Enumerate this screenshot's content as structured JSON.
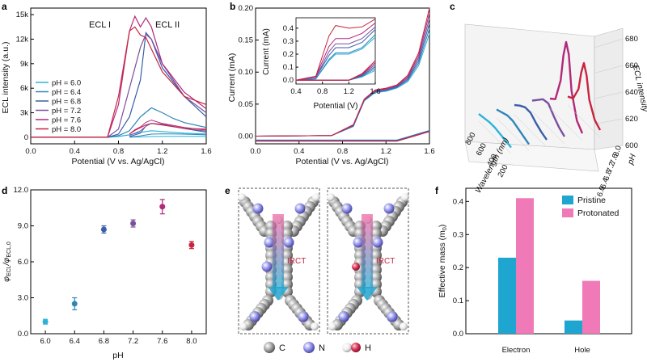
{
  "panels": {
    "a": {
      "letter": "a",
      "xlabel": "Potential (V vs. Ag/AgCl)",
      "ylabel": "ECL intensity (a.u.)",
      "xticks": [
        "0.0",
        "0.4",
        "0.8",
        "1.2",
        "1.6"
      ],
      "yticks": [
        "0",
        "3k",
        "6k",
        "9k",
        "12k",
        "15k"
      ],
      "annotations": [
        "ECL I",
        "ECL II"
      ],
      "legend": [
        "pH = 6.0",
        "pH = 6.4",
        "pH = 6.8",
        "pH = 7.2",
        "pH = 7.6",
        "pH = 8.0"
      ]
    },
    "b": {
      "letter": "b",
      "xlabel": "Potential (V vs. Ag/AgCl)",
      "ylabel": "Current (mA)",
      "xticks": [
        "0.0",
        "0.4",
        "0.8",
        "1.2",
        "1.6"
      ],
      "yticks": [
        "0.00",
        "0.05",
        "0.10",
        "0.15",
        "0.20"
      ],
      "inset": {
        "xlabel": "Potential (V)",
        "ylabel": "Current (mA)",
        "xticks": [
          "0.4",
          "0.8",
          "1.2",
          "1.6"
        ],
        "yticks": [
          "0.0",
          "0.1",
          "0.2",
          "0.3",
          "0.4"
        ]
      }
    },
    "c": {
      "letter": "c",
      "zlabel": "ECL intensity",
      "zticks": [
        "600",
        "620",
        "640",
        "660",
        "680"
      ],
      "wl_label": "Wavelength (nm)",
      "wl_ticks": [
        "800",
        "600",
        "400",
        "200"
      ],
      "ph_label": "pH",
      "ph_ticks": [
        "6.0",
        "6.4",
        "6.8",
        "7.2",
        "7.6",
        "8.0"
      ]
    },
    "d": {
      "letter": "d",
      "xlabel": "pH",
      "ylabel_main": "φ",
      "ylabel_sub1": "ECL",
      "ylabel_mid": "/φ",
      "ylabel_sub2": "ECL,0",
      "xticks": [
        "6.0",
        "6.4",
        "6.8",
        "7.2",
        "7.6",
        "8.0"
      ],
      "yticks": [
        "0.0",
        "3.0",
        "6.0",
        "9.0",
        "12.0"
      ]
    },
    "e": {
      "letter": "e",
      "labels": [
        "IRCT",
        "IRCT"
      ],
      "legend": [
        "C",
        "N",
        "H"
      ]
    },
    "f": {
      "letter": "f",
      "ylabel": "Effective mass (m",
      "ylabel_sub": "0",
      "ylabel_end": ")",
      "yticks": [
        "0.0",
        "0.1",
        "0.2",
        "0.3",
        "0.4"
      ],
      "legend": [
        "Pristine",
        "Protonated"
      ]
    }
  },
  "colors": {
    "ph60": "#2bb3d9",
    "ph64": "#2e86b8",
    "ph68": "#3a5ea8",
    "ph72": "#7a4fa0",
    "ph76": "#b2287a",
    "ph80": "#c9243f",
    "pristine": "#1ea6d0",
    "protonated": "#f07ab8"
  },
  "chart_data": [
    {
      "panel": "a",
      "type": "line",
      "xlabel": "Potential (V vs. Ag/AgCl)",
      "ylabel": "ECL intensity (a.u.)",
      "xlim": [
        0,
        1.6
      ],
      "ylim": [
        -800,
        15800
      ],
      "series": [
        {
          "name": "pH = 6.0",
          "x": [
            0,
            0.7,
            0.8,
            0.9,
            1.0,
            1.1,
            1.2,
            1.3,
            1.4,
            1.6
          ],
          "y": [
            0,
            0,
            100,
            300,
            600,
            800,
            700,
            600,
            500,
            400
          ]
        },
        {
          "name": "pH = 6.4",
          "x": [
            0,
            0.7,
            0.8,
            0.9,
            1.0,
            1.1,
            1.2,
            1.3,
            1.4,
            1.6
          ],
          "y": [
            0,
            0,
            200,
            800,
            2500,
            3600,
            3000,
            2300,
            1800,
            1200
          ]
        },
        {
          "name": "pH = 6.8",
          "x": [
            0,
            0.7,
            0.8,
            0.9,
            1.0,
            1.05,
            1.1,
            1.2,
            1.4,
            1.6
          ],
          "y": [
            0,
            0,
            400,
            2500,
            7000,
            12800,
            12000,
            8500,
            5000,
            2500
          ]
        },
        {
          "name": "pH = 7.2",
          "x": [
            0,
            0.7,
            0.8,
            0.9,
            1.0,
            1.05,
            1.1,
            1.2,
            1.4,
            1.6
          ],
          "y": [
            0,
            0,
            1000,
            6000,
            11000,
            12600,
            12000,
            9000,
            5000,
            3000
          ]
        },
        {
          "name": "pH = 7.6",
          "x": [
            0,
            0.7,
            0.8,
            0.9,
            0.95,
            1.0,
            1.05,
            1.1,
            1.2,
            1.4,
            1.6
          ],
          "y": [
            0,
            0,
            4000,
            13000,
            14800,
            13500,
            14600,
            13500,
            9000,
            5500,
            3500
          ]
        },
        {
          "name": "pH = 8.0",
          "x": [
            0,
            0.7,
            0.8,
            0.9,
            0.95,
            1.0,
            1.05,
            1.1,
            1.2,
            1.4,
            1.6
          ],
          "y": [
            0,
            0,
            5000,
            13000,
            13500,
            12500,
            12200,
            10800,
            8000,
            5000,
            4000
          ]
        }
      ]
    },
    {
      "panel": "b",
      "type": "line",
      "xlabel": "Potential (V vs. Ag/AgCl)",
      "ylabel": "Current (mA)",
      "xlim": [
        0,
        1.6
      ],
      "ylim": [
        -0.012,
        0.2
      ],
      "series": [
        {
          "name": "pH = 6.0",
          "x": [
            0,
            0.7,
            0.9,
            1.0,
            1.1,
            1.2,
            1.3,
            1.4,
            1.5,
            1.6
          ],
          "y": [
            0,
            0.001,
            0.015,
            0.055,
            0.068,
            0.07,
            0.075,
            0.085,
            0.11,
            0.16
          ]
        },
        {
          "name": "pH = 8.0",
          "x": [
            0,
            0.7,
            0.9,
            1.0,
            1.1,
            1.2,
            1.3,
            1.4,
            1.5,
            1.6
          ],
          "y": [
            0,
            0.001,
            0.018,
            0.058,
            0.072,
            0.075,
            0.08,
            0.095,
            0.13,
            0.2
          ]
        }
      ]
    },
    {
      "panel": "b-inset",
      "type": "line",
      "xlabel": "Potential (V)",
      "ylabel": "Current (mA)",
      "xlim": [
        0.4,
        1.6
      ],
      "ylim": [
        -0.03,
        0.48
      ],
      "series": [
        {
          "name": "pH = 6.0",
          "x": [
            0.4,
            0.7,
            0.9,
            1.0,
            1.2,
            1.4,
            1.6
          ],
          "y": [
            0,
            0.01,
            0.15,
            0.2,
            0.2,
            0.24,
            0.33
          ]
        },
        {
          "name": "pH = 6.4",
          "x": [
            0.4,
            0.7,
            0.9,
            1.0,
            1.2,
            1.4,
            1.6
          ],
          "y": [
            0,
            0.01,
            0.16,
            0.21,
            0.21,
            0.25,
            0.35
          ]
        },
        {
          "name": "pH = 6.8",
          "x": [
            0.4,
            0.7,
            0.9,
            1.0,
            1.2,
            1.4,
            1.6
          ],
          "y": [
            0,
            0.02,
            0.19,
            0.25,
            0.25,
            0.29,
            0.39
          ]
        },
        {
          "name": "pH = 7.2",
          "x": [
            0.4,
            0.7,
            0.9,
            1.0,
            1.2,
            1.4,
            1.6
          ],
          "y": [
            0,
            0.02,
            0.22,
            0.28,
            0.28,
            0.32,
            0.41
          ]
        },
        {
          "name": "pH = 7.6",
          "x": [
            0.4,
            0.7,
            0.9,
            1.0,
            1.2,
            1.4,
            1.6
          ],
          "y": [
            0,
            0.03,
            0.26,
            0.32,
            0.32,
            0.36,
            0.44
          ]
        },
        {
          "name": "pH = 8.0",
          "x": [
            0.4,
            0.7,
            0.9,
            1.0,
            1.2,
            1.4,
            1.6
          ],
          "y": [
            0,
            0.03,
            0.34,
            0.42,
            0.4,
            0.41,
            0.47
          ]
        }
      ]
    },
    {
      "panel": "c",
      "type": "line",
      "xlabel": "Wavelength (nm)",
      "ylabel": "pH",
      "zlabel": "ECL intensity",
      "zlim": [
        600,
        680
      ],
      "series": [
        {
          "name": "6.0",
          "x": [
            200,
            300,
            400,
            500,
            600,
            700,
            800
          ],
          "y": [
            605,
            606,
            607,
            608,
            608,
            607,
            606
          ]
        },
        {
          "name": "6.4",
          "x": [
            200,
            300,
            400,
            500,
            600,
            700,
            800
          ],
          "y": [
            605,
            607,
            609,
            611,
            611,
            609,
            607
          ]
        },
        {
          "name": "6.8",
          "x": [
            200,
            300,
            400,
            500,
            600,
            700,
            800
          ],
          "y": [
            606,
            608,
            611,
            615,
            615,
            612,
            608
          ]
        },
        {
          "name": "7.2",
          "x": [
            200,
            300,
            400,
            500,
            600,
            700,
            800
          ],
          "y": [
            606,
            609,
            614,
            620,
            619,
            614,
            609
          ]
        },
        {
          "name": "7.6",
          "x": [
            200,
            300,
            400,
            450,
            500,
            550,
            600,
            700,
            800
          ],
          "y": [
            606,
            612,
            632,
            660,
            668,
            655,
            632,
            612,
            608
          ]
        },
        {
          "name": "8.0",
          "x": [
            200,
            300,
            400,
            450,
            500,
            550,
            600,
            700,
            800
          ],
          "y": [
            606,
            610,
            622,
            640,
            648,
            638,
            622,
            610,
            607
          ]
        }
      ]
    },
    {
      "panel": "d",
      "type": "scatter",
      "xlabel": "pH",
      "ylabel": "φECL/φECL,0",
      "xlim": [
        5.8,
        8.2
      ],
      "ylim": [
        0,
        12
      ],
      "x": [
        6.0,
        6.4,
        6.8,
        7.2,
        7.6,
        8.0
      ],
      "y": [
        1.0,
        2.5,
        8.7,
        9.2,
        10.6,
        7.4
      ],
      "err": [
        0.2,
        0.5,
        0.3,
        0.3,
        0.6,
        0.3
      ]
    },
    {
      "panel": "f",
      "type": "bar",
      "ylabel": "Effective mass (m0)",
      "ylim": [
        0,
        0.44
      ],
      "categories": [
        "Electron",
        "Hole"
      ],
      "series": [
        {
          "name": "Pristine",
          "values": [
            0.23,
            0.04
          ]
        },
        {
          "name": "Protonated",
          "values": [
            0.41,
            0.16
          ]
        }
      ]
    }
  ]
}
